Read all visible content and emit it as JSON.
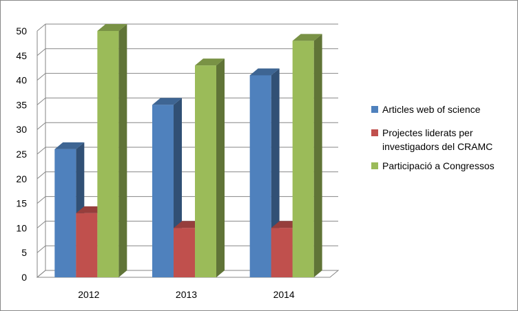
{
  "chart_data": {
    "type": "bar",
    "categories": [
      "2012",
      "2013",
      "2014"
    ],
    "series": [
      {
        "name": "Articles web of science",
        "values": [
          26,
          35,
          41
        ],
        "color": "#4F81BD"
      },
      {
        "name": "Projectes liderats per investigadors del CRAMC",
        "values": [
          13,
          10,
          10
        ],
        "color": "#C0504D"
      },
      {
        "name": "Participació a Congressos",
        "values": [
          50,
          43,
          48
        ],
        "color": "#9BBB59"
      }
    ],
    "ylim": [
      0,
      50
    ],
    "yticks": [
      "0",
      "5",
      "10",
      "15",
      "20",
      "25",
      "30",
      "35",
      "40",
      "45",
      "50"
    ],
    "grid": true,
    "legend_position": "right",
    "style": "3d-clustered-column"
  },
  "legend": {
    "item0": "Articles web of science",
    "item1_line1": "Projectes liderats per",
    "item1_line2": "investigadors del CRAMC",
    "item2": "Participació a Congressos"
  }
}
